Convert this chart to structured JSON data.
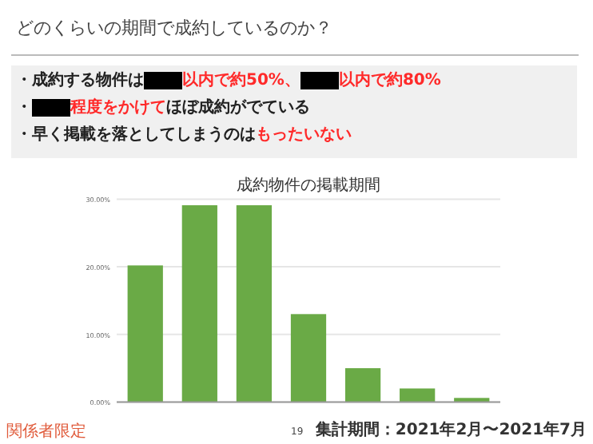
{
  "chart_data": {
    "type": "bar",
    "title": "成約物件の掲載期間",
    "categories": [
      null,
      null,
      null,
      null,
      null,
      null,
      null
    ],
    "values": [
      20.2,
      29.1,
      29.1,
      13.0,
      5.0,
      2.0,
      0.6
    ],
    "color": "#6aaa46",
    "ylim": [
      0,
      30
    ],
    "yticks": [
      {
        "value": 0,
        "label": "0.00%"
      },
      {
        "value": 10,
        "label": "10.00%"
      },
      {
        "value": 20,
        "label": "20.00%"
      },
      {
        "value": 30,
        "label": "30.00%"
      }
    ],
    "grid": "y",
    "subtitle": "どのくらいの期間で成約しているのか？",
    "annotations": [
      "・成約する物件は",
      "以内で約50%、",
      "以内で約80%",
      "・",
      "程度をかけて",
      "ほぼ成約がでている",
      "・早く掲載を落としてしまうのは",
      "もったいない",
      "集計期間：2021年2月〜2021年7月",
      "19",
      "関係者限定"
    ]
  }
}
